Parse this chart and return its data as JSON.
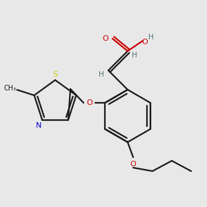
{
  "background_color": "#e8e8e8",
  "bond_color": "#1a1a1a",
  "colors": {
    "O": "#cc0000",
    "N": "#0000cc",
    "S": "#cccc00",
    "H": "#507070",
    "C": "#1a1a1a"
  },
  "figsize": [
    3.0,
    3.0
  ],
  "dpi": 100
}
